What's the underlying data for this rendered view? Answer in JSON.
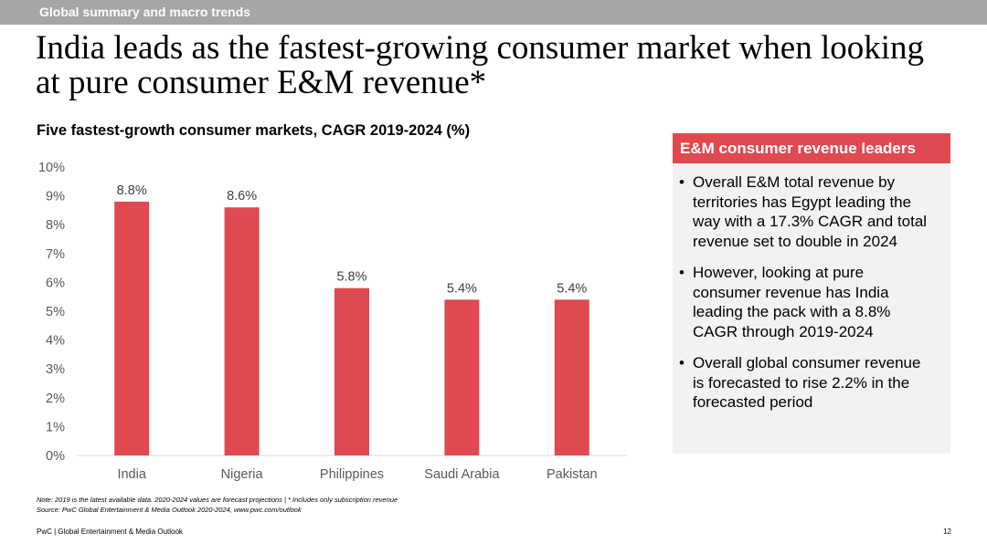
{
  "header": {
    "section": "Global summary and macro trends"
  },
  "title": "India leads as the fastest-growing consumer market when looking at pure consumer E&M revenue*",
  "chart_data": {
    "type": "bar",
    "title": "Five fastest-growth consumer markets, CAGR 2019-2024 (%)",
    "categories": [
      "India",
      "Nigeria",
      "Philippines",
      "Saudi Arabia",
      "Pakistan"
    ],
    "values": [
      8.8,
      8.6,
      5.8,
      5.4,
      5.4
    ],
    "data_labels": [
      "8.8%",
      "8.6%",
      "5.8%",
      "5.4%",
      "5.4%"
    ],
    "yticks": [
      "0%",
      "1%",
      "2%",
      "3%",
      "4%",
      "5%",
      "6%",
      "7%",
      "8%",
      "9%",
      "10%"
    ],
    "ylim": [
      0,
      10
    ],
    "xlabel": "",
    "ylabel": "",
    "grid": false,
    "bar_color": "#e0494f"
  },
  "panel": {
    "heading": "E&M consumer revenue leaders",
    "bullets": [
      "Overall E&M total revenue by territories has Egypt leading the way with a 17.3% CAGR and total revenue set to double in 2024",
      "However, looking at pure consumer revenue has India leading the pack with a 8.8% CAGR through 2019-2024",
      "Overall global consumer revenue is forecasted to rise 2.2% in the forecasted period"
    ],
    "accent": "#e0494f"
  },
  "notes": {
    "note": "Note: 2019 is the latest available data. 2020-2024 values are forecast projections | * Includes only subscription revenue",
    "source": "Source: PwC Global Entertainment & Media Outlook 2020-2024, www.pwc.com/outlook"
  },
  "footer": {
    "text": "PwC | Global Entertainment & Media Outlook",
    "page": "12"
  }
}
